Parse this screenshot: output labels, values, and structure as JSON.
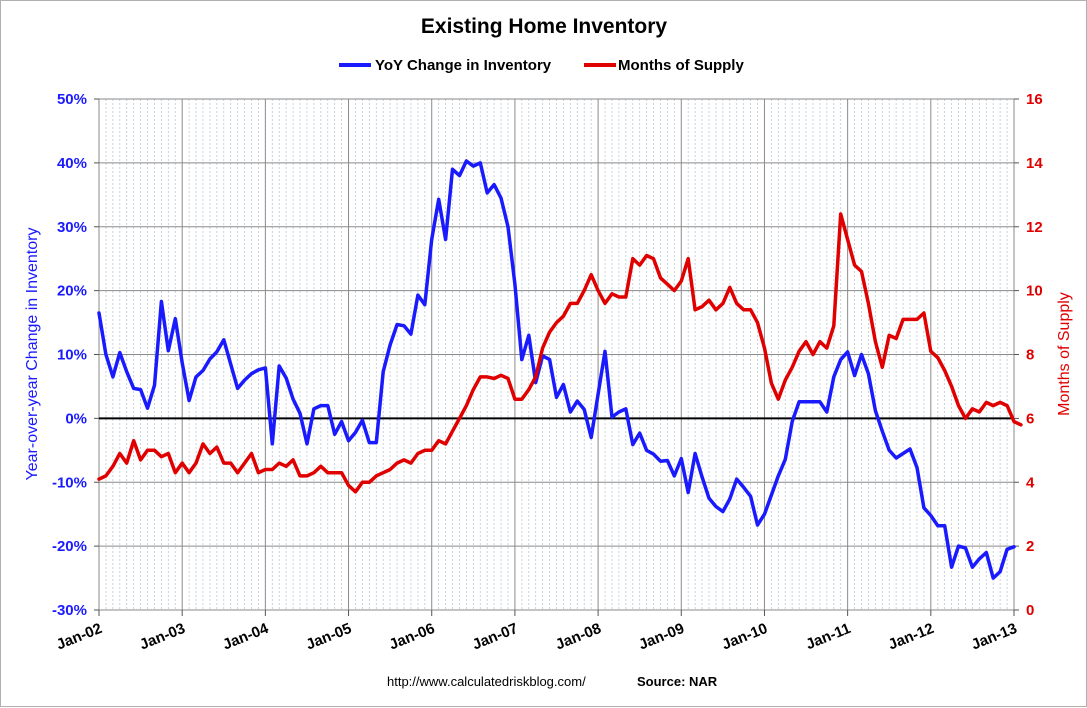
{
  "chart_data": {
    "type": "line",
    "title": "Existing Home Inventory",
    "legend_position": "top-center",
    "grid": true,
    "y_left": {
      "label": "Year-over-year Change in Inventory",
      "range": [
        -30,
        50
      ],
      "ticks": [
        "50%",
        "40%",
        "30%",
        "20%",
        "10%",
        "0%",
        "-10%",
        "-20%",
        "-30%"
      ],
      "tick_values": [
        50,
        40,
        30,
        20,
        10,
        0,
        -10,
        -20,
        -30
      ],
      "color": "#1a1aff"
    },
    "y_right": {
      "label": "Months of Supply",
      "range": [
        0,
        16
      ],
      "ticks": [
        "16",
        "14",
        "12",
        "10",
        "8",
        "6",
        "4",
        "2",
        "0"
      ],
      "tick_values": [
        16,
        14,
        12,
        10,
        8,
        6,
        4,
        2,
        0
      ],
      "color": "#e00000"
    },
    "x_axis": {
      "range": [
        "2002-01",
        "2013-01"
      ],
      "ticks": [
        "Jan-02",
        "Jan-03",
        "Jan-04",
        "Jan-05",
        "Jan-06",
        "Jan-07",
        "Jan-08",
        "Jan-09",
        "Jan-10",
        "Jan-11",
        "Jan-12",
        "Jan-13"
      ]
    },
    "series": [
      {
        "name": "YoY Change in Inventory",
        "axis": "left",
        "color": "#1a1aff",
        "start": "2002-01",
        "values": [
          16.5,
          10,
          6.5,
          10.3,
          7.3,
          4.7,
          4.5,
          1.6,
          5.2,
          18.3,
          10.6,
          15.6,
          8.7,
          2.8,
          6.5,
          7.5,
          9.3,
          10.4,
          12.3,
          8.5,
          4.7,
          6,
          7,
          7.6,
          7.9,
          -4,
          8.2,
          6.3,
          3,
          0.8,
          -4,
          1.5,
          2,
          2,
          -2.5,
          -0.5,
          -3.5,
          -2.2,
          -0.3,
          -3.8,
          -3.8,
          7.3,
          11.5,
          14.7,
          14.5,
          13.2,
          19.3,
          17.8,
          28,
          34.3,
          28,
          39,
          38,
          40.3,
          39.5,
          40,
          35.3,
          36.6,
          34.5,
          30,
          21,
          9.2,
          13,
          5.6,
          9.8,
          9.2,
          3.3,
          5.3,
          1,
          2.7,
          1.4,
          -3,
          3.8,
          10.5,
          0.2,
          1,
          1.5,
          -4.1,
          -2.3,
          -5,
          -5.6,
          -6.7,
          -6.6,
          -9,
          -6.3,
          -11.6,
          -5.5,
          -9.2,
          -12.5,
          -13.8,
          -14.6,
          -12.6,
          -9.5,
          -10.8,
          -12.2,
          -16.7,
          -15,
          -12,
          -9,
          -6.4,
          -0.5,
          2.6,
          2.6,
          2.6,
          2.6,
          1,
          6.5,
          9.2,
          10.4,
          6.7,
          10,
          7,
          1.2,
          -2,
          -5,
          -6.2,
          -5.5,
          -4.8,
          -7.7,
          -14,
          -15.2,
          -16.8,
          -16.8,
          -23.3,
          -20,
          -20.3,
          -23.3,
          -22,
          -21,
          -25,
          -24,
          -20.5,
          -20.1
        ]
      },
      {
        "name": "Months of Supply",
        "axis": "right",
        "color": "#e00000",
        "start": "2002-01",
        "values": [
          4.1,
          4.2,
          4.5,
          4.9,
          4.6,
          5.3,
          4.7,
          5,
          5,
          4.8,
          4.9,
          4.3,
          4.6,
          4.3,
          4.6,
          5.2,
          4.9,
          5.1,
          4.6,
          4.6,
          4.3,
          4.6,
          4.9,
          4.3,
          4.4,
          4.4,
          4.6,
          4.5,
          4.7,
          4.2,
          4.2,
          4.3,
          4.5,
          4.3,
          4.3,
          4.3,
          3.9,
          3.7,
          4,
          4,
          4.2,
          4.3,
          4.4,
          4.6,
          4.7,
          4.6,
          4.9,
          5,
          5,
          5.3,
          5.2,
          5.6,
          6,
          6.4,
          6.9,
          7.3,
          7.3,
          7.25,
          7.35,
          7.25,
          6.6,
          6.6,
          6.9,
          7.3,
          8.2,
          8.7,
          9,
          9.2,
          9.6,
          9.6,
          10,
          10.5,
          10,
          9.6,
          9.9,
          9.8,
          9.8,
          11,
          10.8,
          11.1,
          11,
          10.4,
          10.2,
          10,
          10.3,
          11,
          9.4,
          9.5,
          9.7,
          9.4,
          9.6,
          10.1,
          9.6,
          9.4,
          9.4,
          9,
          8.2,
          7.1,
          6.6,
          7.2,
          7.6,
          8.1,
          8.4,
          8,
          8.4,
          8.2,
          8.9,
          12.4,
          11.6,
          10.8,
          10.6,
          9.6,
          8.4,
          7.6,
          8.6,
          8.5,
          9.1,
          9.1,
          9.1,
          9.3,
          8.1,
          7.9,
          7.5,
          7,
          6.4,
          6,
          6.3,
          6.2,
          6.5,
          6.4,
          6.5,
          6.4,
          5.9,
          5.8
        ]
      }
    ],
    "zero_line": true
  },
  "footer": {
    "url": "http://www.calculatedriskblog.com/",
    "source": "Source: NAR"
  }
}
